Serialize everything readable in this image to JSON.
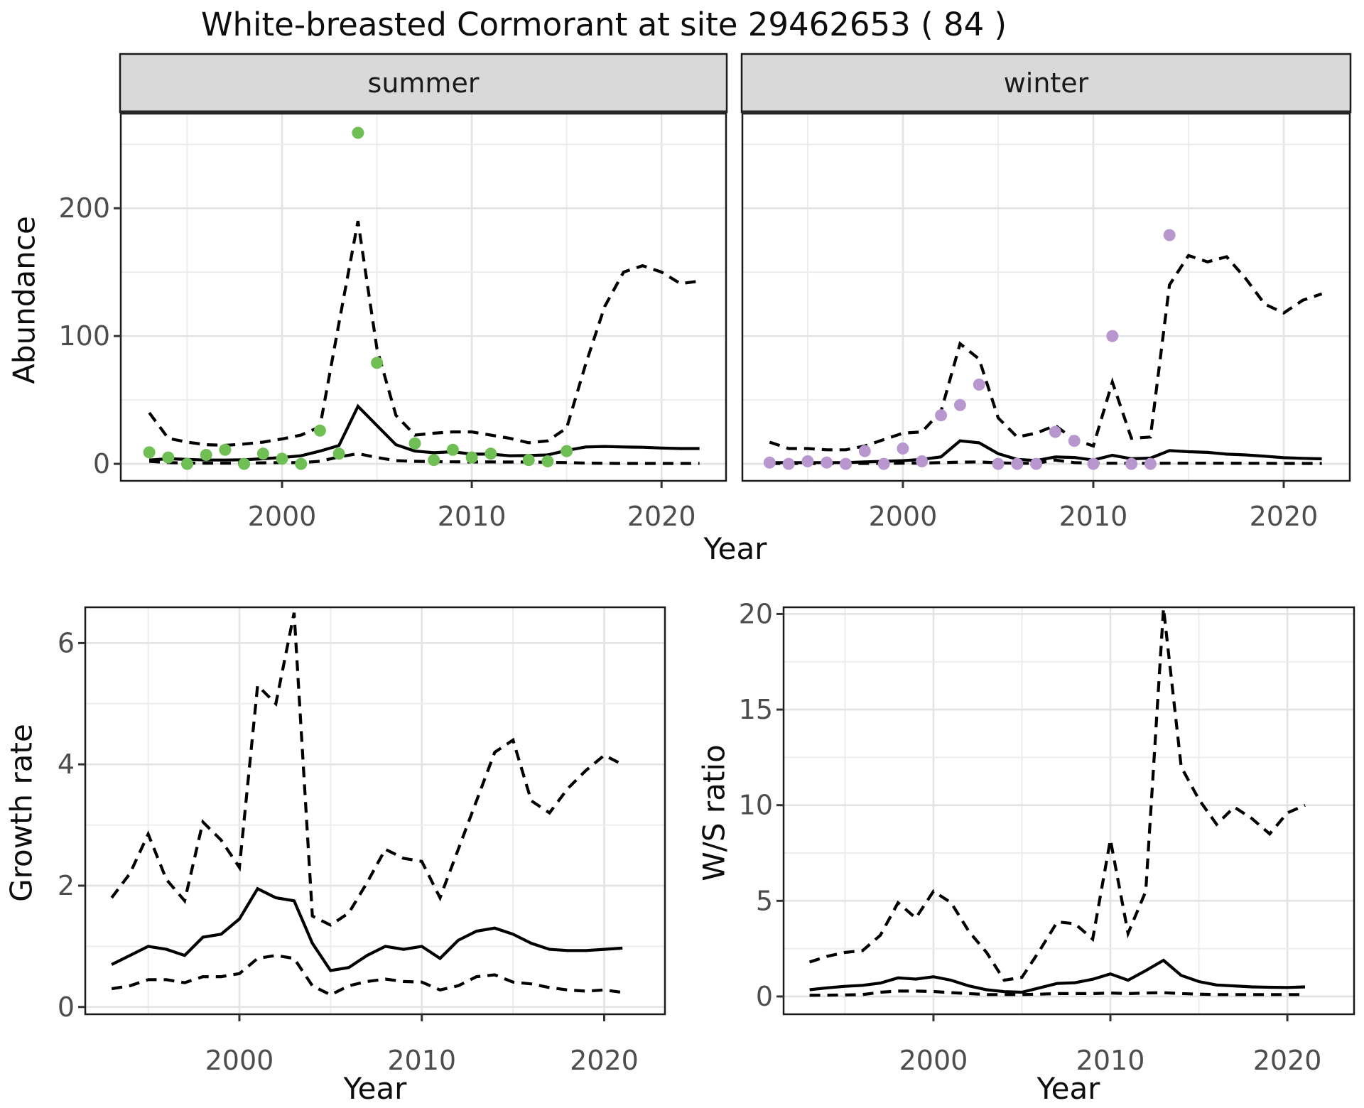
{
  "title": "White-breasted Cormorant at site 29462653 ( 84 )",
  "colors": {
    "summer_point": "#6fbf54",
    "winter_point": "#b897cf",
    "line": "#000000",
    "strip_bg": "#d9d9d9",
    "strip_text": "#1a1a1a",
    "grid_major": "#e3e3e3",
    "grid_minor": "#ededed",
    "tick_text": "#4d4d4d",
    "panel_border": "#1a1a1a",
    "tick_mark": "#333333"
  },
  "chart_data": [
    {
      "id": "abundance-summer",
      "type": "line",
      "facet": "summer",
      "xlabel": "Year",
      "ylabel": "Abundance",
      "xlim": [
        1991.5,
        2023.4
      ],
      "ylim": [
        -13.3,
        274
      ],
      "x_ticks": [
        2000,
        2010,
        2020
      ],
      "y_ticks": [
        0,
        100,
        200
      ],
      "grid_x": [
        1995,
        2000,
        2005,
        2010,
        2015,
        2020
      ],
      "grid_y": [
        0,
        50,
        100,
        150,
        200,
        250
      ],
      "years": [
        1993,
        1994,
        1995,
        1996,
        1997,
        1998,
        1999,
        2000,
        2001,
        2002,
        2003,
        2004,
        2005,
        2006,
        2007,
        2008,
        2009,
        2010,
        2011,
        2012,
        2013,
        2014,
        2015,
        2016,
        2017,
        2018,
        2019,
        2020,
        2021,
        2022
      ],
      "series": [
        {
          "name": "upper-ci",
          "style": "dashed",
          "values": [
            40,
            20,
            17,
            15,
            14.5,
            15.5,
            17,
            19.5,
            22.5,
            29,
            110,
            190,
            90,
            38,
            22.5,
            24,
            25,
            25,
            22.5,
            20,
            16.5,
            18,
            28,
            78,
            123,
            150,
            155,
            150,
            141,
            143
          ]
        },
        {
          "name": "median-fit",
          "style": "solid",
          "values": [
            3,
            4,
            3.5,
            3,
            3,
            3.2,
            4,
            5,
            6.3,
            10,
            14.3,
            45,
            30,
            15,
            10,
            8.7,
            9.5,
            7.6,
            7.6,
            6.3,
            6.5,
            7,
            10.5,
            13.2,
            13.6,
            13.2,
            13,
            12.4,
            12,
            12
          ]
        },
        {
          "name": "lower-ci",
          "style": "dashed",
          "values": [
            2,
            1,
            0.6,
            0.5,
            0.5,
            0.5,
            0.8,
            1,
            1,
            2,
            5.4,
            8,
            5,
            2.5,
            2,
            1.7,
            1.6,
            1.5,
            1.5,
            1.4,
            1.5,
            1.2,
            1,
            0.6,
            0.4,
            0.3,
            0.3,
            0.3,
            0.3,
            0.3
          ]
        }
      ],
      "observed": {
        "name": "summer-counts",
        "color_key": "summer_point",
        "years": [
          1993,
          1994,
          1995,
          1996,
          1997,
          1998,
          1999,
          2000,
          2001,
          2002,
          2003,
          2004,
          2005,
          2007,
          2008,
          2009,
          2010,
          2011,
          2013,
          2014,
          2015
        ],
        "values": [
          9,
          5,
          0,
          7,
          11,
          0,
          8,
          4,
          0,
          26,
          8,
          259,
          79,
          16,
          3,
          11,
          5,
          8,
          3,
          2,
          10
        ]
      }
    },
    {
      "id": "abundance-winter",
      "type": "line",
      "facet": "winter",
      "xlabel": "Year",
      "ylabel": "Abundance",
      "xlim": [
        1991.57,
        2023.47
      ],
      "ylim": [
        -13.3,
        274
      ],
      "x_ticks": [
        2000,
        2010,
        2020
      ],
      "y_ticks": [
        0,
        100,
        200
      ],
      "grid_x": [
        1995,
        2000,
        2005,
        2010,
        2015,
        2020
      ],
      "grid_y": [
        0,
        50,
        100,
        150,
        200,
        250
      ],
      "years": [
        1993,
        1994,
        1995,
        1996,
        1997,
        1998,
        1999,
        2000,
        2001,
        2002,
        2003,
        2004,
        2005,
        2006,
        2007,
        2008,
        2009,
        2010,
        2011,
        2012,
        2013,
        2014,
        2015,
        2016,
        2017,
        2018,
        2019,
        2020,
        2021,
        2022
      ],
      "series": [
        {
          "name": "upper-ci",
          "style": "dashed",
          "values": [
            17,
            12,
            12,
            11,
            11,
            14,
            19,
            24,
            25,
            41,
            94,
            82,
            36,
            21,
            24,
            30,
            19,
            14,
            64,
            20,
            21,
            140,
            163,
            158,
            162,
            145,
            125,
            118,
            128,
            133
          ]
        },
        {
          "name": "median-fit",
          "style": "solid",
          "values": [
            1,
            1,
            1,
            1,
            1,
            1.5,
            2,
            2.5,
            3.5,
            5.5,
            18,
            16.5,
            8,
            3.5,
            2.6,
            5.4,
            5,
            3,
            6.7,
            4,
            4.5,
            10.4,
            9.5,
            9,
            7.6,
            7,
            6,
            4.8,
            4.3,
            3.9
          ]
        },
        {
          "name": "lower-ci",
          "style": "dashed",
          "values": [
            0.3,
            0.3,
            0.3,
            0.3,
            0.3,
            0.3,
            0.4,
            0.5,
            0.6,
            1,
            1.3,
            1.5,
            0.8,
            0.4,
            0.4,
            2.9,
            1,
            0.4,
            0.5,
            0.4,
            0.4,
            0.5,
            0.5,
            0.5,
            0.5,
            0.4,
            0.4,
            0.3,
            0.3,
            0.3
          ]
        }
      ],
      "observed": {
        "name": "winter-counts",
        "color_key": "winter_point",
        "years": [
          1993,
          1994,
          1995,
          1996,
          1997,
          1998,
          1999,
          2000,
          2001,
          2002,
          2003,
          2004,
          2005,
          2006,
          2007,
          2008,
          2009,
          2010,
          2011,
          2012,
          2013,
          2014
        ],
        "values": [
          1,
          0,
          2,
          1,
          0,
          10,
          0,
          12,
          2,
          38,
          46,
          62,
          0,
          0,
          0,
          25,
          18,
          0,
          100,
          0,
          0,
          179
        ]
      }
    },
    {
      "id": "growth-rate",
      "type": "line",
      "facet": null,
      "xlabel": "Year",
      "ylabel": "Growth rate",
      "xlim": [
        1991.55,
        2023.33
      ],
      "ylim": [
        -0.12,
        6.59
      ],
      "x_ticks": [
        2000,
        2010,
        2020
      ],
      "y_ticks": [
        0,
        2,
        4,
        6
      ],
      "grid_x": [
        1995,
        2000,
        2005,
        2010,
        2015,
        2020
      ],
      "grid_y": [
        0,
        1,
        2,
        3,
        4,
        5,
        6
      ],
      "years": [
        1993,
        1994,
        1995,
        1996,
        1997,
        1998,
        1999,
        2000,
        2001,
        2002,
        2003,
        2004,
        2005,
        2006,
        2007,
        2008,
        2009,
        2010,
        2011,
        2012,
        2013,
        2014,
        2015,
        2016,
        2017,
        2018,
        2019,
        2020,
        2021
      ],
      "series": [
        {
          "name": "upper-ci",
          "style": "dashed",
          "values": [
            1.8,
            2.2,
            2.85,
            2.1,
            1.75,
            3.05,
            2.75,
            2.3,
            5.3,
            5.0,
            6.5,
            1.5,
            1.35,
            1.55,
            2.05,
            2.6,
            2.45,
            2.4,
            1.8,
            2.6,
            3.4,
            4.2,
            4.4,
            3.4,
            3.2,
            3.6,
            3.9,
            4.15,
            4.0
          ]
        },
        {
          "name": "median-fit",
          "style": "solid",
          "values": [
            0.7,
            0.85,
            1.0,
            0.95,
            0.85,
            1.15,
            1.2,
            1.45,
            1.95,
            1.8,
            1.75,
            1.05,
            0.6,
            0.65,
            0.85,
            1.0,
            0.95,
            1.0,
            0.8,
            1.1,
            1.25,
            1.3,
            1.2,
            1.05,
            0.95,
            0.93,
            0.93,
            0.95,
            0.97
          ]
        },
        {
          "name": "lower-ci",
          "style": "dashed",
          "values": [
            0.3,
            0.35,
            0.45,
            0.45,
            0.4,
            0.5,
            0.5,
            0.55,
            0.8,
            0.85,
            0.8,
            0.35,
            0.2,
            0.35,
            0.42,
            0.46,
            0.42,
            0.41,
            0.28,
            0.35,
            0.5,
            0.53,
            0.41,
            0.38,
            0.32,
            0.28,
            0.26,
            0.28,
            0.24
          ]
        }
      ],
      "observed": null
    },
    {
      "id": "ws-ratio",
      "type": "line",
      "facet": null,
      "xlabel": "Year",
      "ylabel": "W/S ratio",
      "xlim": [
        1991.53,
        2023.77
      ],
      "ylim": [
        -0.93,
        20.35
      ],
      "x_ticks": [
        2000,
        2010,
        2020
      ],
      "y_ticks": [
        0,
        5,
        10,
        15,
        20
      ],
      "grid_x": [
        1995,
        2000,
        2005,
        2010,
        2015,
        2020
      ],
      "grid_y": [
        0,
        2.5,
        5,
        7.5,
        10,
        12.5,
        15,
        17.5,
        20
      ],
      "years": [
        1993,
        1994,
        1995,
        1996,
        1997,
        1998,
        1999,
        2000,
        2001,
        2002,
        2003,
        2004,
        2005,
        2006,
        2007,
        2008,
        2009,
        2010,
        2011,
        2012,
        2013,
        2014,
        2015,
        2016,
        2017,
        2018,
        2019,
        2020,
        2021
      ],
      "series": [
        {
          "name": "upper-ci",
          "style": "dashed",
          "values": [
            1.8,
            2.1,
            2.3,
            2.4,
            3.2,
            4.9,
            4.1,
            5.5,
            4.9,
            3.4,
            2.3,
            0.85,
            1.0,
            2.4,
            3.9,
            3.8,
            3.0,
            8.2,
            3.3,
            5.5,
            20.3,
            12.0,
            10.3,
            9.0,
            9.9,
            9.3,
            8.5,
            9.6,
            10.0
          ]
        },
        {
          "name": "median-fit",
          "style": "solid",
          "values": [
            0.35,
            0.45,
            0.53,
            0.58,
            0.7,
            0.97,
            0.91,
            1.03,
            0.85,
            0.55,
            0.35,
            0.25,
            0.22,
            0.45,
            0.68,
            0.72,
            0.9,
            1.18,
            0.85,
            1.35,
            1.89,
            1.1,
            0.78,
            0.6,
            0.55,
            0.5,
            0.48,
            0.47,
            0.5
          ]
        },
        {
          "name": "lower-ci",
          "style": "dashed",
          "values": [
            0.06,
            0.07,
            0.08,
            0.1,
            0.22,
            0.28,
            0.28,
            0.26,
            0.2,
            0.15,
            0.1,
            0.1,
            0.1,
            0.12,
            0.15,
            0.15,
            0.15,
            0.18,
            0.15,
            0.18,
            0.2,
            0.15,
            0.12,
            0.1,
            0.1,
            0.1,
            0.1,
            0.1,
            0.1
          ]
        }
      ],
      "observed": null
    }
  ]
}
